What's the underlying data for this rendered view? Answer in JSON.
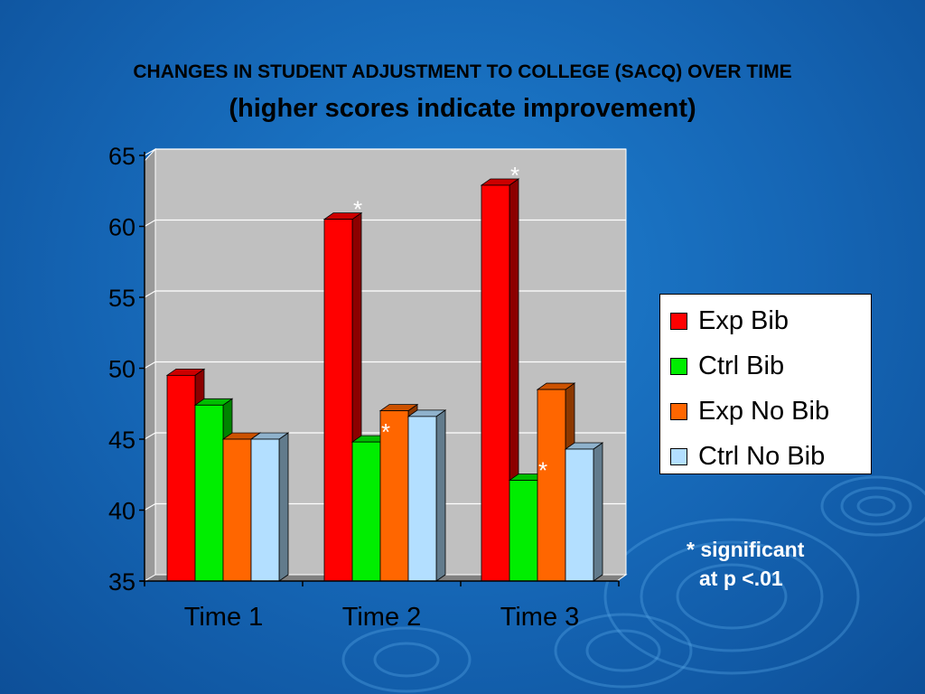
{
  "slide": {
    "title": "CHANGES IN STUDENT ADJUSTMENT TO COLLEGE (SACQ) OVER TIME",
    "subtitle": "(higher scores indicate improvement)",
    "note_line1": "* significant",
    "note_line2": "at p <.01"
  },
  "chart_data": {
    "type": "bar",
    "categories": [
      "Time 1",
      "Time 2",
      "Time 3"
    ],
    "series": [
      {
        "name": "Exp Bib",
        "values": [
          49.5,
          60.5,
          62.9
        ],
        "color": "#ff0000",
        "significant": [
          false,
          true,
          true
        ]
      },
      {
        "name": "Ctrl Bib",
        "values": [
          47.4,
          44.8,
          42.1
        ],
        "color": "#00ee00",
        "significant": [
          false,
          true,
          true
        ]
      },
      {
        "name": "Exp No Bib",
        "values": [
          45.0,
          47.0,
          48.5
        ],
        "color": "#ff6600",
        "significant": [
          false,
          false,
          false
        ]
      },
      {
        "name": "Ctrl No Bib",
        "values": [
          45.0,
          46.6,
          44.3
        ],
        "color": "#b3dfff",
        "significant": [
          false,
          false,
          false
        ]
      }
    ],
    "ylim": [
      35,
      65
    ],
    "yticks": [
      35,
      40,
      45,
      50,
      55,
      60,
      65
    ],
    "significance_marker": "*",
    "grid": true,
    "legend_position": "right"
  }
}
